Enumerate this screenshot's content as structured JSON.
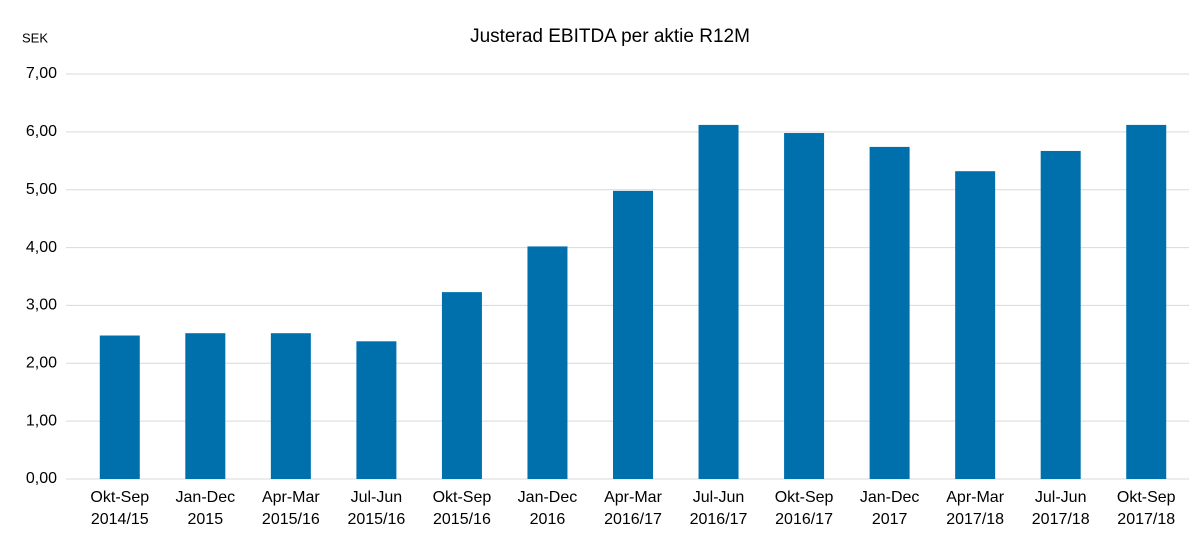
{
  "chart_data": {
    "type": "bar",
    "title": "Justerad EBITDA per aktie R12M",
    "y_axis_label": "SEK",
    "categories": [
      [
        "Okt-Sep",
        "2014/15"
      ],
      [
        "Jan-Dec",
        "2015"
      ],
      [
        "Apr-Mar",
        "2015/16"
      ],
      [
        "Jul-Jun",
        "2015/16"
      ],
      [
        "Okt-Sep",
        "2015/16"
      ],
      [
        "Jan-Dec",
        "2016"
      ],
      [
        "Apr-Mar",
        "2016/17"
      ],
      [
        "Jul-Jun",
        "2016/17"
      ],
      [
        "Okt-Sep",
        "2016/17"
      ],
      [
        "Jan-Dec",
        "2017"
      ],
      [
        "Apr-Mar",
        "2017/18"
      ],
      [
        "Jul-Jun",
        "2017/18"
      ],
      [
        "Okt-Sep",
        "2017/18"
      ]
    ],
    "values": [
      2.48,
      2.52,
      2.52,
      2.38,
      3.23,
      4.02,
      4.98,
      6.12,
      5.98,
      5.74,
      5.32,
      5.67,
      6.12
    ],
    "color": "#0070ad",
    "ylim": [
      0,
      7
    ],
    "yticks": [
      {
        "value": 0,
        "label": "0,00"
      },
      {
        "value": 1,
        "label": "1,00"
      },
      {
        "value": 2,
        "label": "2,00"
      },
      {
        "value": 3,
        "label": "3,00"
      },
      {
        "value": 4,
        "label": "4,00"
      },
      {
        "value": 5,
        "label": "5,00"
      },
      {
        "value": 6,
        "label": "6,00"
      },
      {
        "value": 7,
        "label": "7,00"
      }
    ],
    "grid": true
  }
}
